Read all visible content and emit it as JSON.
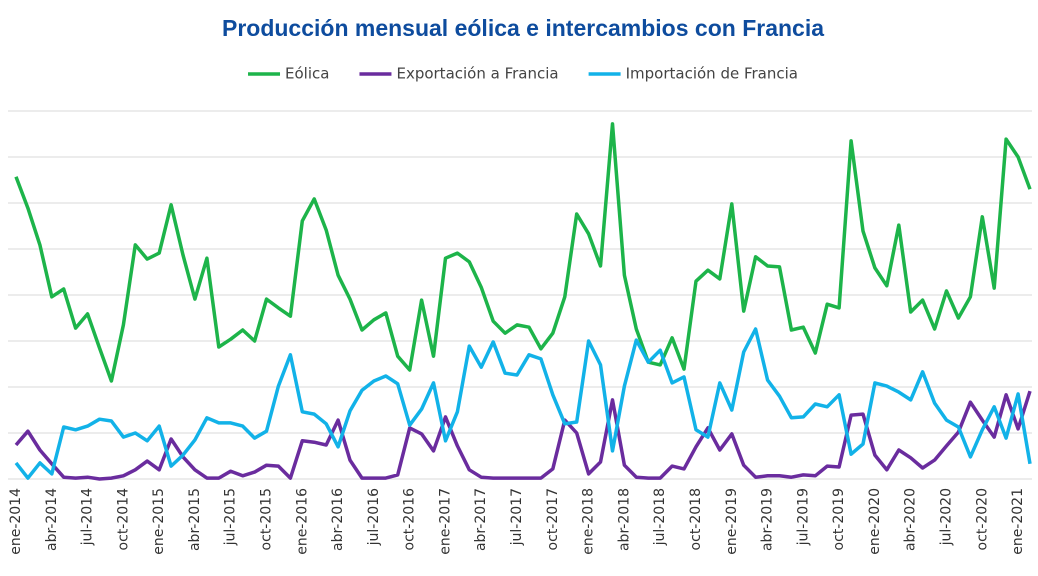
{
  "chart_data": {
    "type": "line",
    "title": "Producción mensual eólica e intercambios con Francia",
    "categories": [
      "ene-2014",
      null,
      null,
      "abr-2014",
      null,
      null,
      "jul-2014",
      null,
      null,
      "oct-2014",
      null,
      null,
      "ene-2015",
      null,
      null,
      "abr-2015",
      null,
      null,
      "jul-2015",
      null,
      null,
      "oct-2015",
      null,
      null,
      "ene-2016",
      null,
      null,
      "abr-2016",
      null,
      null,
      "jul-2016",
      null,
      null,
      "oct-2016",
      null,
      null,
      "ene-2017",
      null,
      null,
      "abr-2017",
      null,
      null,
      "jul-2017",
      null,
      null,
      "oct-2017",
      null,
      null,
      "ene-2018",
      null,
      null,
      "abr-2018",
      null,
      null,
      "jul-2018",
      null,
      null,
      "oct-2018",
      null,
      null,
      "ene-2019",
      null,
      null,
      "abr-2019",
      null,
      null,
      "jul-2019",
      null,
      null,
      "oct-2019",
      null,
      null,
      "ene-2020",
      null,
      null,
      "abr-2020",
      null,
      null,
      "jul-2020",
      null,
      null,
      "oct-2020",
      null,
      null,
      "ene-2021",
      null
    ],
    "series": [
      {
        "name": "Eólica",
        "color": "#1db44a",
        "values": [
          6.57,
          5.89,
          5.09,
          3.96,
          4.13,
          3.28,
          3.59,
          2.85,
          2.13,
          3.35,
          5.09,
          4.78,
          4.91,
          5.96,
          4.87,
          3.91,
          4.8,
          2.87,
          3.04,
          3.24,
          3.0,
          3.91,
          3.72,
          3.54,
          5.61,
          6.09,
          5.41,
          4.43,
          3.91,
          3.24,
          3.46,
          3.61,
          2.67,
          2.37,
          3.89,
          2.67,
          4.8,
          4.91,
          4.72,
          4.17,
          3.43,
          3.17,
          3.35,
          3.3,
          2.83,
          3.17,
          3.96,
          5.76,
          5.33,
          4.63,
          7.72,
          4.43,
          3.26,
          2.54,
          2.48,
          3.07,
          2.39,
          4.3,
          4.54,
          4.35,
          5.98,
          3.65,
          4.83,
          4.63,
          4.61,
          3.24,
          3.3,
          2.74,
          3.8,
          3.72,
          7.35,
          5.39,
          4.59,
          4.2,
          5.52,
          3.63,
          3.89,
          3.26,
          4.09,
          3.5,
          3.96,
          5.7,
          4.15,
          7.39,
          7.0,
          6.3
        ]
      },
      {
        "name": "Exportación a Francia",
        "color": "#6a2c9e",
        "values": [
          0.74,
          1.04,
          0.63,
          0.33,
          0.04,
          0.02,
          0.04,
          0,
          0.02,
          0.07,
          0.2,
          0.39,
          0.2,
          0.87,
          0.48,
          0.2,
          0.02,
          0.02,
          0.17,
          0.07,
          0.15,
          0.3,
          0.28,
          0.02,
          0.83,
          0.8,
          0.74,
          1.28,
          0.41,
          0.02,
          0.02,
          0.02,
          0.09,
          1.11,
          0.98,
          0.61,
          1.35,
          0.72,
          0.2,
          0.04,
          0.02,
          0.02,
          0.02,
          0.02,
          0.02,
          0.22,
          1.28,
          1.0,
          0.11,
          0.37,
          1.72,
          0.3,
          0.04,
          0.02,
          0.02,
          0.28,
          0.22,
          0.7,
          1.11,
          0.63,
          0.98,
          0.3,
          0.04,
          0.07,
          0.07,
          0.04,
          0.09,
          0.07,
          0.28,
          0.26,
          1.39,
          1.41,
          0.52,
          0.2,
          0.63,
          0.46,
          0.24,
          0.41,
          0.72,
          1.02,
          1.67,
          1.28,
          0.91,
          1.83,
          1.09,
          1.91
        ]
      },
      {
        "name": "Importación de Francia",
        "color": "#12b2e8",
        "values": [
          0.35,
          0.02,
          0.35,
          0.11,
          1.13,
          1.07,
          1.15,
          1.3,
          1.26,
          0.91,
          1.0,
          0.83,
          1.15,
          0.28,
          0.52,
          0.85,
          1.33,
          1.22,
          1.22,
          1.15,
          0.89,
          1.04,
          2.02,
          2.7,
          1.46,
          1.41,
          1.2,
          0.7,
          1.48,
          1.93,
          2.13,
          2.24,
          2.07,
          1.17,
          1.52,
          2.09,
          0.83,
          1.46,
          2.89,
          2.43,
          2.98,
          2.3,
          2.26,
          2.7,
          2.61,
          1.83,
          1.2,
          1.24,
          3.0,
          2.48,
          0.61,
          2.02,
          3.02,
          2.54,
          2.8,
          2.09,
          2.22,
          1.07,
          0.91,
          2.09,
          1.5,
          2.76,
          3.26,
          2.15,
          1.8,
          1.33,
          1.35,
          1.63,
          1.57,
          1.83,
          0.54,
          0.76,
          2.09,
          2.02,
          1.89,
          1.72,
          2.33,
          1.65,
          1.28,
          1.13,
          0.48,
          1.07,
          1.57,
          0.89,
          1.85,
          0.33
        ]
      }
    ],
    "ylim": [
      0,
      8.3
    ],
    "yticks": [
      0,
      1,
      2,
      3,
      4,
      5,
      6,
      7,
      8
    ],
    "grid": true,
    "legend": "top"
  }
}
